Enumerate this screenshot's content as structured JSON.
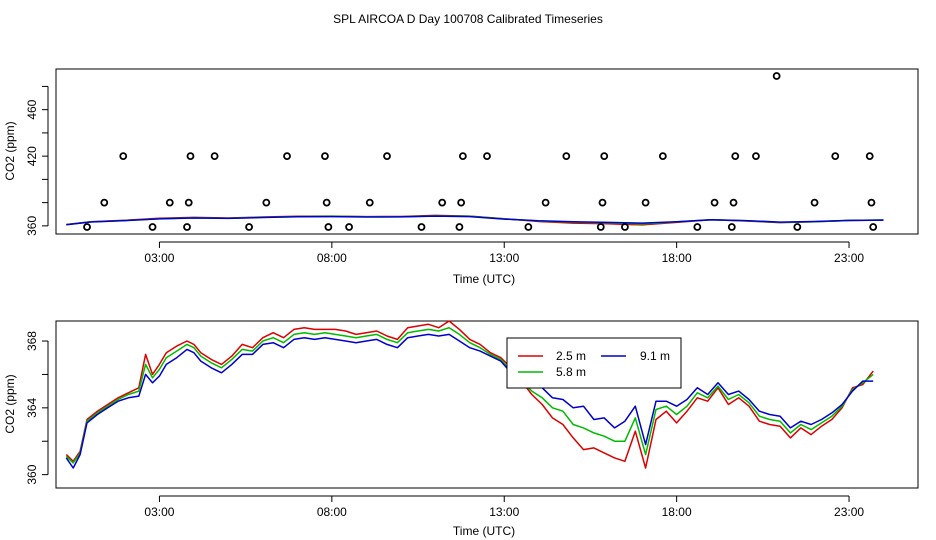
{
  "title": "SPL AIRCOA D  Day 100708  Calibrated Timeseries",
  "colors": {
    "red": "#dd0000",
    "green": "#00bb00",
    "blue": "#0000cc",
    "axis": "#000000"
  },
  "chart_data": [
    {
      "type": "line",
      "title": "",
      "xlabel": "Time (UTC)",
      "ylabel": "CO2 (ppm)",
      "xlim": [
        0.0,
        25.0
      ],
      "ylim": [
        353,
        495
      ],
      "xticks": [
        3,
        8,
        13,
        18,
        23
      ],
      "xtick_labels": [
        "03:00",
        "08:00",
        "13:00",
        "18:00",
        "23:00"
      ],
      "yticks": [
        360,
        380,
        400,
        420,
        440,
        460,
        480
      ],
      "ytick_labels": [
        "360",
        "",
        "",
        "420",
        "",
        "460",
        ""
      ],
      "markers": [
        {
          "x": 0.9,
          "y": 359
        },
        {
          "x": 1.4,
          "y": 380
        },
        {
          "x": 1.95,
          "y": 420
        },
        {
          "x": 2.8,
          "y": 359
        },
        {
          "x": 3.3,
          "y": 380
        },
        {
          "x": 3.8,
          "y": 359
        },
        {
          "x": 3.85,
          "y": 380
        },
        {
          "x": 3.9,
          "y": 420
        },
        {
          "x": 4.6,
          "y": 420
        },
        {
          "x": 5.6,
          "y": 359
        },
        {
          "x": 6.1,
          "y": 380
        },
        {
          "x": 6.7,
          "y": 420
        },
        {
          "x": 7.8,
          "y": 420
        },
        {
          "x": 7.85,
          "y": 380
        },
        {
          "x": 7.9,
          "y": 359
        },
        {
          "x": 8.5,
          "y": 359
        },
        {
          "x": 9.1,
          "y": 380
        },
        {
          "x": 9.6,
          "y": 420
        },
        {
          "x": 10.6,
          "y": 359
        },
        {
          "x": 11.2,
          "y": 380
        },
        {
          "x": 11.7,
          "y": 359
        },
        {
          "x": 11.75,
          "y": 380
        },
        {
          "x": 11.8,
          "y": 420
        },
        {
          "x": 12.5,
          "y": 420
        },
        {
          "x": 13.7,
          "y": 359
        },
        {
          "x": 14.2,
          "y": 380
        },
        {
          "x": 14.8,
          "y": 420
        },
        {
          "x": 15.8,
          "y": 359
        },
        {
          "x": 15.85,
          "y": 380
        },
        {
          "x": 15.9,
          "y": 420
        },
        {
          "x": 16.5,
          "y": 359
        },
        {
          "x": 17.1,
          "y": 380
        },
        {
          "x": 17.6,
          "y": 420
        },
        {
          "x": 18.6,
          "y": 359
        },
        {
          "x": 19.1,
          "y": 380
        },
        {
          "x": 19.6,
          "y": 359
        },
        {
          "x": 19.65,
          "y": 380
        },
        {
          "x": 19.7,
          "y": 420
        },
        {
          "x": 20.3,
          "y": 420
        },
        {
          "x": 20.9,
          "y": 489
        },
        {
          "x": 21.5,
          "y": 359
        },
        {
          "x": 22.0,
          "y": 380
        },
        {
          "x": 22.6,
          "y": 420
        },
        {
          "x": 23.6,
          "y": 420
        },
        {
          "x": 23.65,
          "y": 380
        },
        {
          "x": 23.7,
          "y": 359
        }
      ],
      "series": [
        {
          "name": "2.5 m",
          "color": "#dd0000",
          "x": [
            0.3,
            1,
            2,
            3,
            4,
            5,
            6,
            7,
            8,
            9,
            10,
            11,
            12,
            13,
            14,
            15,
            16,
            17,
            18,
            19,
            20,
            21,
            22,
            23,
            24
          ],
          "values": [
            361.2,
            363.5,
            364.8,
            366.5,
            367.3,
            366.8,
            367.6,
            368.2,
            368.4,
            368.0,
            368.1,
            369.0,
            368.4,
            366.2,
            363.8,
            362.4,
            361.8,
            360.8,
            363.0,
            365.2,
            364.2,
            362.8,
            363.6,
            364.6,
            365.0
          ]
        },
        {
          "name": "5.8 m",
          "color": "#00bb00",
          "x": [
            0.3,
            1,
            2,
            3,
            4,
            5,
            6,
            7,
            8,
            9,
            10,
            11,
            12,
            13,
            14,
            15,
            16,
            17,
            18,
            19,
            20,
            21,
            22,
            23,
            24
          ],
          "values": [
            361.1,
            363.4,
            364.6,
            366.2,
            367.0,
            366.6,
            367.4,
            368.0,
            368.2,
            367.8,
            367.9,
            368.6,
            368.2,
            366.0,
            364.2,
            363.2,
            362.6,
            361.6,
            363.4,
            365.2,
            364.4,
            363.0,
            363.6,
            364.6,
            365.1
          ]
        },
        {
          "name": "9.1 m",
          "color": "#0000cc",
          "x": [
            0.3,
            1,
            2,
            3,
            4,
            5,
            6,
            7,
            8,
            9,
            10,
            11,
            12,
            13,
            14,
            15,
            16,
            17,
            18,
            19,
            20,
            21,
            22,
            23,
            24
          ],
          "values": [
            361.0,
            363.3,
            364.5,
            366.0,
            366.8,
            366.4,
            367.2,
            367.8,
            368.0,
            367.6,
            367.7,
            368.4,
            368.0,
            365.8,
            364.4,
            363.6,
            363.0,
            362.4,
            363.6,
            365.2,
            364.5,
            363.2,
            363.8,
            364.7,
            365.0
          ]
        }
      ]
    },
    {
      "type": "line",
      "title": "",
      "xlabel": "Time (UTC)",
      "ylabel": "CO2 (ppm)",
      "xlim": [
        0.0,
        25.0
      ],
      "ylim": [
        359.2,
        369.2
      ],
      "xticks": [
        3,
        8,
        13,
        18,
        23
      ],
      "xtick_labels": [
        "03:00",
        "08:00",
        "13:00",
        "18:00",
        "23:00"
      ],
      "yticks": [
        360,
        362,
        364,
        366,
        368
      ],
      "ytick_labels": [
        "360",
        "",
        "364",
        "",
        "368"
      ],
      "legend": {
        "position": "top-center",
        "entries": [
          "2.5 m",
          "9.1 m",
          "5.8 m"
        ]
      },
      "series": [
        {
          "name": "2.5 m",
          "color": "#dd0000",
          "x": [
            0.3,
            0.5,
            0.7,
            0.9,
            1.2,
            1.5,
            1.8,
            2.1,
            2.4,
            2.6,
            2.8,
            3.0,
            3.2,
            3.5,
            3.8,
            4.0,
            4.2,
            4.5,
            4.8,
            5.1,
            5.4,
            5.7,
            6.0,
            6.3,
            6.6,
            6.9,
            7.2,
            7.5,
            7.8,
            8.1,
            8.4,
            8.7,
            9.0,
            9.3,
            9.6,
            9.9,
            10.2,
            10.5,
            10.8,
            11.1,
            11.4,
            11.7,
            12.0,
            12.3,
            12.6,
            12.9,
            13.2,
            13.5,
            13.8,
            14.1,
            14.4,
            14.7,
            15.0,
            15.3,
            15.6,
            15.9,
            16.2,
            16.5,
            16.8,
            17.1,
            17.4,
            17.7,
            18.0,
            18.3,
            18.6,
            18.9,
            19.2,
            19.5,
            19.8,
            20.1,
            20.4,
            20.7,
            21.0,
            21.3,
            21.6,
            21.9,
            22.2,
            22.5,
            22.8,
            23.1,
            23.4,
            23.7
          ],
          "values": [
            361.2,
            360.8,
            361.4,
            363.3,
            363.8,
            364.2,
            364.6,
            364.9,
            365.2,
            367.2,
            366.0,
            366.6,
            367.3,
            367.7,
            368.0,
            367.8,
            367.3,
            366.9,
            366.6,
            367.1,
            367.8,
            367.6,
            368.2,
            368.5,
            368.2,
            368.7,
            368.8,
            368.7,
            368.7,
            368.7,
            368.6,
            368.4,
            368.5,
            368.6,
            368.3,
            368.1,
            368.8,
            368.9,
            369.0,
            368.8,
            369.2,
            368.7,
            368.1,
            367.8,
            367.3,
            367.0,
            366.4,
            365.6,
            364.8,
            364.2,
            363.4,
            363.0,
            362.2,
            361.5,
            361.6,
            361.3,
            361.0,
            360.8,
            362.6,
            360.4,
            363.3,
            363.8,
            363.1,
            363.8,
            364.6,
            364.4,
            365.2,
            364.2,
            364.6,
            364.1,
            363.2,
            363.0,
            362.9,
            362.2,
            362.8,
            362.4,
            362.9,
            363.3,
            364.0,
            365.2,
            365.4,
            366.2
          ]
        },
        {
          "name": "5.8 m",
          "color": "#00bb00",
          "x": [
            0.3,
            0.5,
            0.7,
            0.9,
            1.2,
            1.5,
            1.8,
            2.1,
            2.4,
            2.6,
            2.8,
            3.0,
            3.2,
            3.5,
            3.8,
            4.0,
            4.2,
            4.5,
            4.8,
            5.1,
            5.4,
            5.7,
            6.0,
            6.3,
            6.6,
            6.9,
            7.2,
            7.5,
            7.8,
            8.1,
            8.4,
            8.7,
            9.0,
            9.3,
            9.6,
            9.9,
            10.2,
            10.5,
            10.8,
            11.1,
            11.4,
            11.7,
            12.0,
            12.3,
            12.6,
            12.9,
            13.2,
            13.5,
            13.8,
            14.1,
            14.4,
            14.7,
            15.0,
            15.3,
            15.6,
            15.9,
            16.2,
            16.5,
            16.8,
            17.1,
            17.4,
            17.7,
            18.0,
            18.3,
            18.6,
            18.9,
            19.2,
            19.5,
            19.8,
            20.1,
            20.4,
            20.7,
            21.0,
            21.3,
            21.6,
            21.9,
            22.2,
            22.5,
            22.8,
            23.1,
            23.4,
            23.7
          ],
          "values": [
            361.1,
            360.7,
            361.3,
            363.2,
            363.7,
            364.1,
            364.5,
            364.8,
            365.0,
            366.6,
            365.8,
            366.3,
            367.0,
            367.4,
            367.8,
            367.6,
            367.1,
            366.7,
            366.4,
            366.9,
            367.5,
            367.4,
            368.0,
            368.2,
            367.9,
            368.4,
            368.5,
            368.4,
            368.5,
            368.4,
            368.3,
            368.2,
            368.3,
            368.4,
            368.1,
            367.9,
            368.5,
            368.6,
            368.7,
            368.6,
            368.8,
            368.4,
            367.9,
            367.6,
            367.2,
            366.9,
            366.2,
            365.6,
            365.0,
            364.6,
            364.0,
            363.8,
            363.0,
            362.8,
            362.5,
            362.3,
            362.0,
            362.0,
            363.4,
            361.2,
            363.9,
            364.1,
            363.6,
            364.1,
            364.9,
            364.6,
            365.3,
            364.5,
            364.8,
            364.3,
            363.5,
            363.3,
            363.2,
            362.5,
            363.0,
            362.7,
            363.1,
            363.5,
            364.1,
            365.1,
            365.5,
            366.0
          ]
        },
        {
          "name": "9.1 m",
          "color": "#0000cc",
          "x": [
            0.3,
            0.5,
            0.7,
            0.9,
            1.2,
            1.5,
            1.8,
            2.1,
            2.4,
            2.6,
            2.8,
            3.0,
            3.2,
            3.5,
            3.8,
            4.0,
            4.2,
            4.5,
            4.8,
            5.1,
            5.4,
            5.7,
            6.0,
            6.3,
            6.6,
            6.9,
            7.2,
            7.5,
            7.8,
            8.1,
            8.4,
            8.7,
            9.0,
            9.3,
            9.6,
            9.9,
            10.2,
            10.5,
            10.8,
            11.1,
            11.4,
            11.7,
            12.0,
            12.3,
            12.6,
            12.9,
            13.2,
            13.5,
            13.8,
            14.1,
            14.4,
            14.7,
            15.0,
            15.3,
            15.6,
            15.9,
            16.2,
            16.5,
            16.8,
            17.1,
            17.4,
            17.7,
            18.0,
            18.3,
            18.6,
            18.9,
            19.2,
            19.5,
            19.8,
            20.1,
            20.4,
            20.7,
            21.0,
            21.3,
            21.6,
            21.9,
            22.2,
            22.5,
            22.8,
            23.1,
            23.4,
            23.7
          ],
          "values": [
            361.0,
            360.4,
            361.2,
            363.1,
            363.6,
            364.0,
            364.4,
            364.6,
            364.7,
            366.0,
            365.5,
            365.9,
            366.6,
            367.0,
            367.5,
            367.3,
            366.8,
            366.4,
            366.1,
            366.6,
            367.2,
            367.2,
            367.8,
            367.9,
            367.6,
            368.1,
            368.2,
            368.1,
            368.2,
            368.1,
            368.0,
            367.9,
            368.0,
            368.1,
            367.8,
            367.6,
            368.2,
            368.3,
            368.4,
            368.3,
            368.4,
            368.0,
            367.6,
            367.4,
            367.1,
            366.8,
            366.1,
            365.8,
            365.4,
            365.2,
            364.6,
            364.5,
            364.0,
            364.1,
            363.3,
            363.4,
            362.8,
            363.2,
            364.1,
            361.8,
            364.4,
            364.4,
            364.1,
            364.5,
            365.2,
            364.8,
            365.5,
            364.8,
            365.0,
            364.5,
            363.8,
            363.6,
            363.5,
            362.8,
            363.2,
            363.0,
            363.3,
            363.7,
            364.2,
            365.0,
            365.6,
            365.6
          ]
        }
      ]
    }
  ]
}
